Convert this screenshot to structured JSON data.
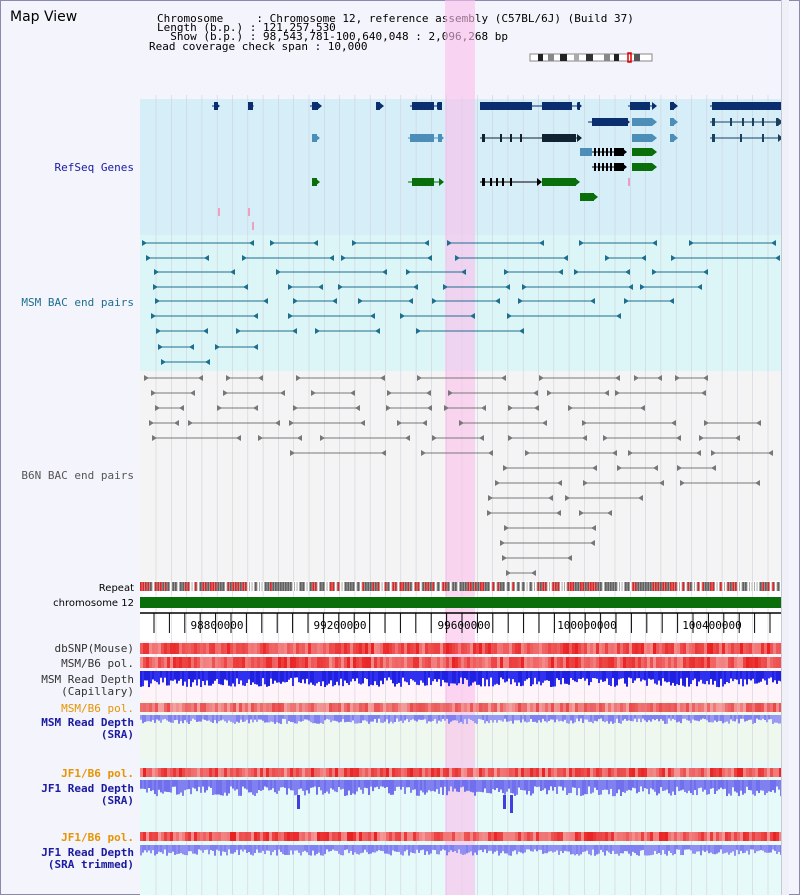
{
  "window": {
    "title": "Map View"
  },
  "header": {
    "line1": "Chromosome     : Chromosome 12, reference assembly (C57BL/6J) (Build 37)",
    "line2": "Length (b.p.) : 121,257,530",
    "line3": "  Show (b.p.) : 98,543,781-100,640,048 : 2,096,268 bp",
    "line4": "Read coverage check span : 10,000"
  },
  "tracks": {
    "refseq": "RefSeq Genes",
    "msm_bac": "MSM BAC end pairs",
    "b6n_bac": "B6N BAC end pairs",
    "repeat": "Repeat",
    "chrom": "chromosome 12",
    "dbsnp": "dbSNP(Mouse)",
    "msm_pol1": "MSM/B6 pol.",
    "msm_depth_cap_1": "MSM Read Depth",
    "msm_depth_cap_2": "(Capillary)",
    "msm_pol2": "MSM/B6 pol.",
    "msm_depth_sra_1": "MSM Read Depth",
    "msm_depth_sra_2": "(SRA)",
    "jf1_pol1": "JF1/B6 pol.",
    "jf1_depth_sra_1": "JF1 Read Depth",
    "jf1_depth_sra_2": "(SRA)",
    "jf1_pol2": "JF1/B6 pol.",
    "jf1_depth_trim_1": "JF1 Read Depth",
    "jf1_depth_trim_2": "(SRA trimmed)"
  },
  "axis": {
    "ticks": [
      "98800000",
      "99200000",
      "99600000",
      "100000000",
      "100400000"
    ]
  },
  "colors": {
    "refseq_bg": "#d6eef8",
    "msm_bg": "#dcf6f8",
    "b6n_bg": "#f4f4f4",
    "gene_dark": "#0b2f6e",
    "gene_mid": "#4d8eb8",
    "gene_green": "#0a6e0a",
    "msm_pair": "#1e6e8e",
    "b6n_pair": "#777777",
    "chrom_bar": "#0a6e0a",
    "snp": "#f07070",
    "depth_blue": "#2020e0",
    "depth_light": "#8080f0",
    "orange_label": "#e69400",
    "navy_label": "#1a1aa0",
    "highlight": "#f9c4ec"
  }
}
